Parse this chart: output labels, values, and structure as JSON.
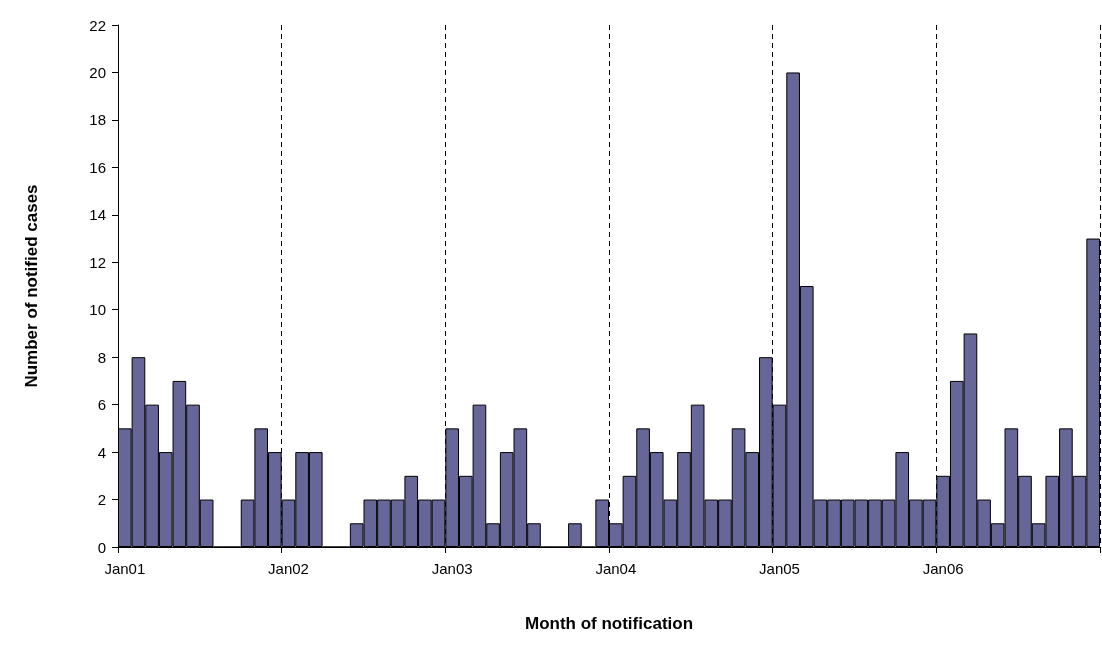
{
  "chart_data": {
    "type": "bar",
    "xlabel": "Month of notification",
    "ylabel": "Number of notified cases",
    "categories": [
      "Jan01",
      null,
      null,
      null,
      null,
      null,
      null,
      null,
      null,
      null,
      null,
      null,
      "Jan02",
      null,
      null,
      null,
      null,
      null,
      null,
      null,
      null,
      null,
      null,
      null,
      "Jan03",
      null,
      null,
      null,
      null,
      null,
      null,
      null,
      null,
      null,
      null,
      null,
      "Jan04",
      null,
      null,
      null,
      null,
      null,
      null,
      null,
      null,
      null,
      null,
      null,
      "Jan05",
      null,
      null,
      null,
      null,
      null,
      null,
      null,
      null,
      null,
      null,
      null,
      "Jan06",
      null,
      null,
      null,
      null,
      null,
      null,
      null,
      null,
      null,
      null,
      null
    ],
    "values": [
      5,
      8,
      6,
      4,
      7,
      6,
      2,
      0,
      0,
      2,
      5,
      4,
      2,
      4,
      4,
      0,
      0,
      1,
      2,
      2,
      2,
      3,
      2,
      2,
      5,
      3,
      6,
      1,
      4,
      5,
      1,
      0,
      0,
      1,
      0,
      2,
      1,
      3,
      5,
      4,
      2,
      4,
      6,
      2,
      2,
      5,
      4,
      8,
      6,
      20,
      11,
      2,
      2,
      2,
      2,
      2,
      2,
      4,
      2,
      2,
      3,
      7,
      9,
      2,
      1,
      5,
      3,
      1,
      3,
      5,
      3,
      13
    ],
    "color": "#666699",
    "ylim": [
      0,
      22
    ],
    "yticks": [
      0,
      2,
      4,
      6,
      8,
      10,
      12,
      14,
      16,
      18,
      20,
      22
    ],
    "grid": "x"
  }
}
